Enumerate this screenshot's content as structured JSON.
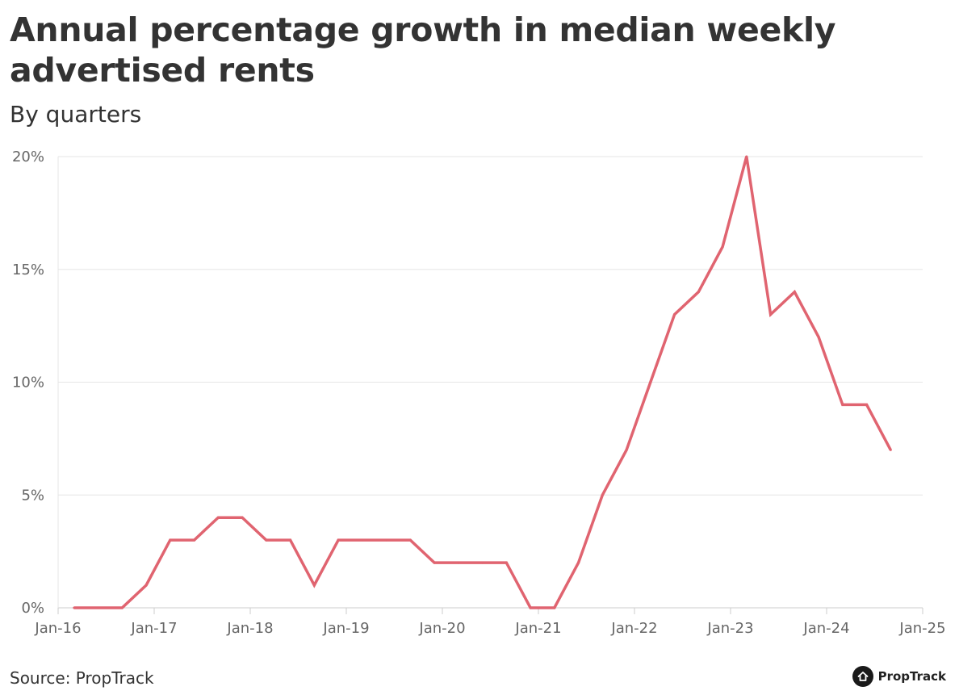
{
  "header": {
    "title": "Annual percentage growth in median weekly advertised rents",
    "subtitle": "By quarters"
  },
  "footer": {
    "source": "Source: PropTrack",
    "brand": "PropTrack",
    "brand_icon": "house-logo-icon"
  },
  "colors": {
    "line": "#e06470",
    "grid": "#e6e6e6",
    "axis": "#cccccc",
    "text": "#333333",
    "tick_text": "#666666"
  },
  "chart_data": {
    "type": "line",
    "title": "Annual percentage growth in median weekly advertised rents",
    "subtitle": "By quarters",
    "xlabel": "",
    "ylabel": "",
    "x_ticks": [
      "Jan-16",
      "Jan-17",
      "Jan-18",
      "Jan-19",
      "Jan-20",
      "Jan-21",
      "Jan-22",
      "Jan-23",
      "Jan-24",
      "Jan-25"
    ],
    "y_ticks": [
      "0%",
      "5%",
      "10%",
      "15%",
      "20%"
    ],
    "xlim": [
      "2016-01",
      "2025-01"
    ],
    "ylim": [
      0,
      20
    ],
    "grid": "horizontal",
    "series": [
      {
        "x": [
          "2016-03",
          "2016-06",
          "2016-09",
          "2016-12",
          "2017-03",
          "2017-06",
          "2017-09",
          "2017-12",
          "2018-03",
          "2018-06",
          "2018-09",
          "2018-12",
          "2019-03",
          "2019-06",
          "2019-09",
          "2019-12",
          "2020-03",
          "2020-06",
          "2020-09",
          "2020-12",
          "2021-03",
          "2021-06",
          "2021-09",
          "2021-12",
          "2022-03",
          "2022-06",
          "2022-09",
          "2022-12",
          "2023-03",
          "2023-06",
          "2023-09",
          "2023-12",
          "2024-03",
          "2024-06",
          "2024-09"
        ],
        "values": [
          0,
          0,
          0,
          1,
          3,
          3,
          4,
          4,
          3,
          3,
          1,
          3,
          3,
          3,
          3,
          2,
          2,
          2,
          2,
          0,
          0,
          2,
          5,
          7,
          10,
          13,
          14,
          16,
          20,
          13,
          14,
          12,
          9,
          9,
          7
        ]
      }
    ]
  }
}
